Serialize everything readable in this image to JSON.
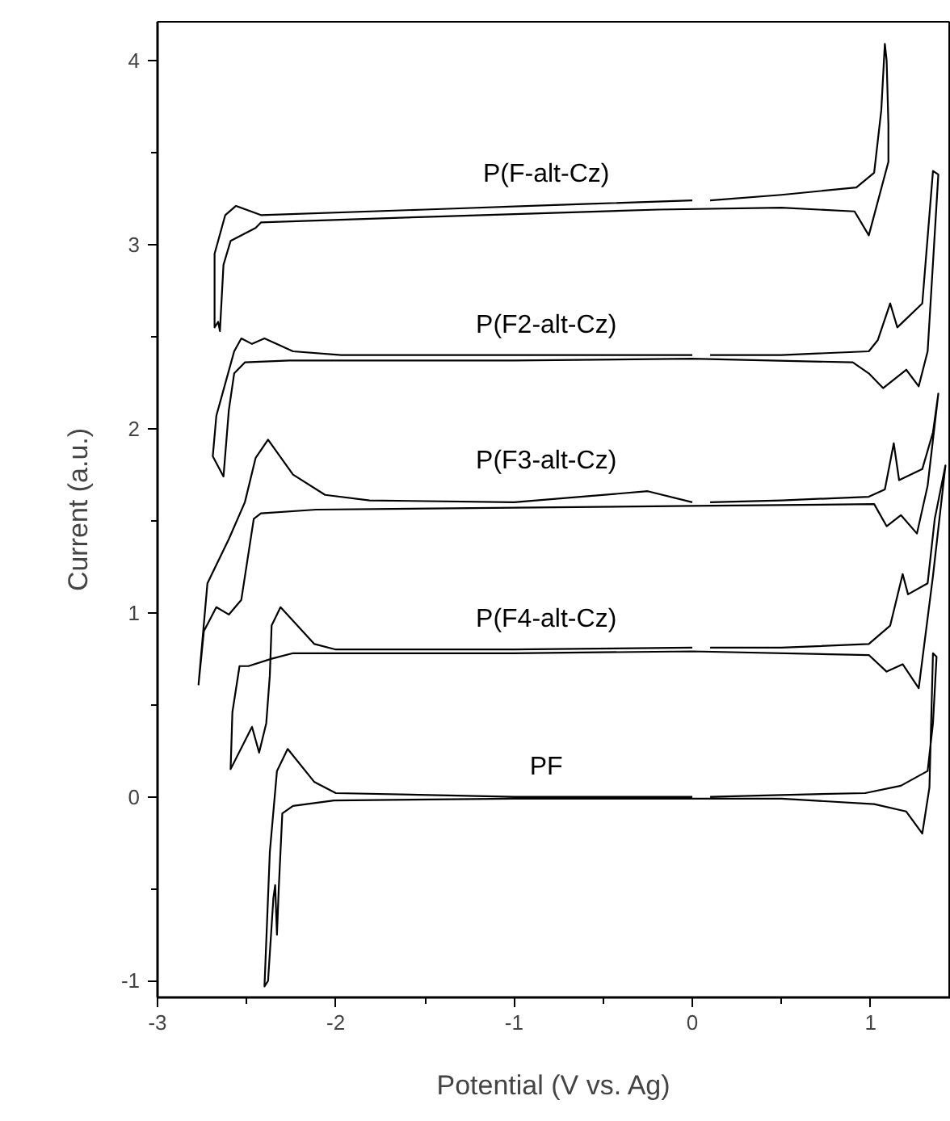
{
  "chart_data": {
    "type": "line",
    "xlabel": "Potential (V vs. Ag)",
    "ylabel": "Current (a.u.)",
    "xlim": [
      -3,
      1.45
    ],
    "ylim": [
      -1.09,
      4.21
    ],
    "xticks": [
      -3,
      {
        "value": -2.5,
        "label": null
      },
      -2,
      {
        "value": -1.5,
        "label": null
      },
      -1,
      {
        "value": -0.5,
        "label": null
      },
      0,
      {
        "value": 0.5,
        "label": null
      },
      1
    ],
    "yticks": [
      -1,
      {
        "value": -0.5,
        "label": null
      },
      0,
      {
        "value": 0.5,
        "label": null
      },
      1,
      {
        "value": 1.5,
        "label": null
      },
      2,
      {
        "value": 2.5,
        "label": null
      },
      3,
      {
        "value": 3.5,
        "label": null
      },
      4
    ],
    "grid": false,
    "marker": "none",
    "line_style": "solid",
    "series": [
      {
        "name": "P(F-alt-Cz)",
        "color": "#000000",
        "x": [
          0.0,
          -0.61,
          -1.5,
          -2.42,
          -2.56,
          -2.62,
          -2.68,
          -2.68,
          -2.68,
          -2.66,
          -2.65,
          -2.63,
          -2.59,
          -2.45,
          -2.42,
          -1.5,
          -0.19,
          0.5,
          0.91,
          0.99,
          1.1,
          1.1,
          1.09,
          1.08,
          1.06,
          1.02,
          0.92,
          0.5,
          0.1
        ],
        "values": [
          3.24,
          3.22,
          3.19,
          3.16,
          3.21,
          3.16,
          2.95,
          2.68,
          2.55,
          2.58,
          2.53,
          2.89,
          3.02,
          3.09,
          3.12,
          3.15,
          3.19,
          3.2,
          3.18,
          3.05,
          3.45,
          3.65,
          4.0,
          4.09,
          3.73,
          3.39,
          3.31,
          3.27,
          3.24
        ]
      },
      {
        "name": "P(F2-alt-Cz)",
        "color": "#000000",
        "x": [
          0.0,
          -1.0,
          -1.97,
          -2.24,
          -2.4,
          -2.47,
          -2.53,
          -2.57,
          -2.63,
          -2.67,
          -2.69,
          -2.63,
          -2.6,
          -2.57,
          -2.51,
          -2.26,
          -1.0,
          0.0,
          0.9,
          0.99,
          1.07,
          1.2,
          1.27,
          1.32,
          1.38,
          1.35,
          1.29,
          1.15,
          1.11,
          1.04,
          0.99,
          0.5,
          0.1
        ],
        "values": [
          2.4,
          2.4,
          2.4,
          2.42,
          2.49,
          2.46,
          2.49,
          2.42,
          2.21,
          2.07,
          1.85,
          1.74,
          2.1,
          2.3,
          2.36,
          2.37,
          2.37,
          2.38,
          2.36,
          2.3,
          2.22,
          2.32,
          2.23,
          2.42,
          3.38,
          3.4,
          2.68,
          2.55,
          2.68,
          2.48,
          2.42,
          2.4,
          2.4
        ]
      },
      {
        "name": "P(F3-alt-Cz)",
        "color": "#000000",
        "x": [
          0.0,
          -0.25,
          -1.0,
          -1.81,
          -2.06,
          -2.24,
          -2.38,
          -2.45,
          -2.51,
          -2.6,
          -2.69,
          -2.72,
          -2.77,
          -2.74,
          -2.67,
          -2.6,
          -2.53,
          -2.46,
          -2.42,
          -2.11,
          -1.0,
          0.0,
          1.02,
          1.09,
          1.17,
          1.26,
          1.32,
          1.38,
          1.35,
          1.29,
          1.16,
          1.13,
          1.08,
          0.99,
          0.5,
          0.1
        ],
        "values": [
          1.6,
          1.66,
          1.6,
          1.61,
          1.64,
          1.75,
          1.94,
          1.84,
          1.6,
          1.4,
          1.22,
          1.16,
          0.61,
          0.9,
          1.03,
          0.99,
          1.07,
          1.51,
          1.54,
          1.56,
          1.57,
          1.58,
          1.59,
          1.47,
          1.53,
          1.43,
          1.69,
          2.19,
          1.98,
          1.78,
          1.72,
          1.92,
          1.67,
          1.63,
          1.61,
          1.6
        ]
      },
      {
        "name": "P(F4-alt-Cz)",
        "color": "#000000",
        "x": [
          0.0,
          -1.0,
          -2.0,
          -2.12,
          -2.31,
          -2.36,
          -2.37,
          -2.39,
          -2.43,
          -2.47,
          -2.59,
          -2.58,
          -2.54,
          -2.49,
          -2.36,
          -2.24,
          -1.0,
          0.0,
          0.99,
          1.09,
          1.18,
          1.27,
          1.35,
          1.42,
          1.36,
          1.32,
          1.21,
          1.18,
          1.11,
          0.99,
          0.5,
          0.1
        ],
        "values": [
          0.81,
          0.8,
          0.8,
          0.83,
          1.03,
          0.93,
          0.66,
          0.4,
          0.24,
          0.38,
          0.15,
          0.46,
          0.71,
          0.71,
          0.75,
          0.78,
          0.78,
          0.79,
          0.77,
          0.68,
          0.72,
          0.59,
          1.2,
          1.8,
          1.51,
          1.16,
          1.1,
          1.21,
          0.93,
          0.83,
          0.81,
          0.81
        ]
      },
      {
        "name": "PF",
        "color": "#000000",
        "x": [
          0.0,
          -1.0,
          -2.0,
          -2.12,
          -2.27,
          -2.33,
          -2.37,
          -2.4,
          -2.38,
          -2.35,
          -2.34,
          -2.33,
          -2.32,
          -2.3,
          -2.24,
          -2.01,
          -1.0,
          0.0,
          0.5,
          1.02,
          1.2,
          1.29,
          1.33,
          1.35,
          1.37,
          1.35,
          1.32,
          1.17,
          0.97,
          0.5,
          0.1
        ],
        "values": [
          0.0,
          0.0,
          0.02,
          0.08,
          0.26,
          0.14,
          -0.3,
          -1.03,
          -1.0,
          -0.55,
          -0.48,
          -0.75,
          -0.5,
          -0.09,
          -0.05,
          -0.02,
          -0.01,
          -0.01,
          -0.01,
          -0.04,
          -0.08,
          -0.2,
          0.05,
          0.78,
          0.76,
          0.4,
          0.14,
          0.06,
          0.02,
          0.01,
          0.0
        ]
      }
    ]
  }
}
